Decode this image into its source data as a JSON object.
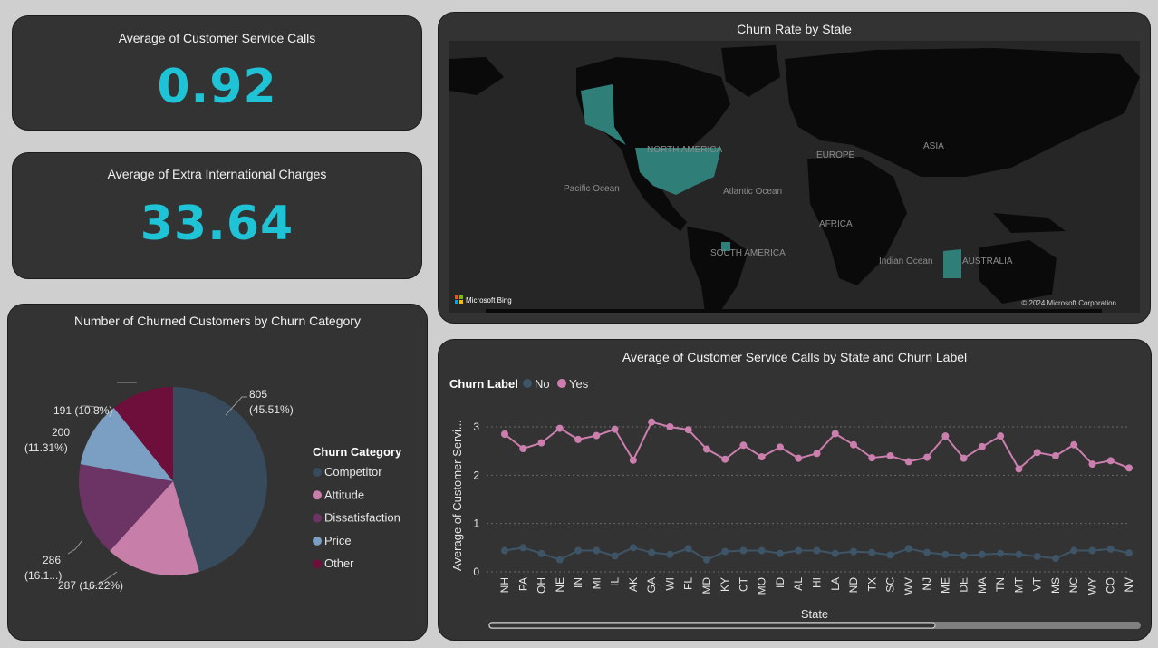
{
  "kpis": [
    {
      "title": "Average of Customer Service Calls",
      "value": "0.92"
    },
    {
      "title": "Average of Extra International Charges",
      "value": "33.64"
    }
  ],
  "map": {
    "title": "Churn Rate by State",
    "labels": {
      "north_america": "NORTH AMERICA",
      "europe": "EUROPE",
      "asia": "ASIA",
      "africa": "AFRICA",
      "south_america": "SOUTH AMERICA",
      "australia": "AUSTRALIA",
      "pacific": "Pacific Ocean",
      "atlantic": "Atlantic Ocean",
      "indian": "Indian Ocean"
    },
    "attribution": "Microsoft Bing",
    "copyright": "© 2024 Microsoft Corporation",
    "highlight_color": "#2f7f78"
  },
  "pie": {
    "title": "Number of Churned Customers by Churn Category",
    "legend_title": "Churn Category",
    "categories": [
      "Competitor",
      "Attitude",
      "Dissatisfaction",
      "Price",
      "Other"
    ],
    "colors": [
      "#374b5c",
      "#c77ea8",
      "#6b3464",
      "#7a9fc3",
      "#6d0f3a"
    ],
    "labels": {
      "competitor_1": "805",
      "competitor_2": "(45.51%)",
      "attitude": "287 (16.22%)",
      "dissatisfaction_1": "286",
      "dissatisfaction_2": "(16.1...)",
      "price_1": "200",
      "price_2": "(11.31%)",
      "other": "191 (10.8%)"
    }
  },
  "chart_data": {
    "type": "line",
    "title": "Average of Customer Service Calls by State and Churn Label",
    "legend_title": "Churn Label",
    "xlabel": "State",
    "ylabel": "Average of Customer Servi...",
    "ylim": [
      0,
      3.3
    ],
    "yticks": [
      0,
      1,
      2,
      3
    ],
    "x": [
      "NH",
      "PA",
      "OH",
      "NE",
      "IN",
      "MI",
      "IL",
      "AK",
      "GA",
      "WI",
      "FL",
      "MD",
      "KY",
      "CT",
      "MO",
      "ID",
      "AL",
      "HI",
      "LA",
      "ND",
      "TX",
      "SC",
      "WV",
      "NJ",
      "ME",
      "DE",
      "MA",
      "TN",
      "MT",
      "VT",
      "MS",
      "NC",
      "WY",
      "CO",
      "NV"
    ],
    "series": [
      {
        "name": "No",
        "color": "#3d5567",
        "values": [
          0.44,
          0.5,
          0.38,
          0.25,
          0.44,
          0.44,
          0.33,
          0.5,
          0.4,
          0.36,
          0.48,
          0.25,
          0.42,
          0.44,
          0.44,
          0.38,
          0.44,
          0.44,
          0.38,
          0.42,
          0.4,
          0.35,
          0.48,
          0.4,
          0.36,
          0.34,
          0.36,
          0.38,
          0.36,
          0.32,
          0.28,
          0.44,
          0.44,
          0.47,
          0.39
        ]
      },
      {
        "name": "Yes",
        "color": "#cc7fae",
        "values": [
          2.85,
          2.55,
          2.67,
          2.97,
          2.74,
          2.82,
          2.95,
          2.31,
          3.1,
          3.0,
          2.94,
          2.54,
          2.33,
          2.62,
          2.38,
          2.58,
          2.35,
          2.45,
          2.86,
          2.63,
          2.36,
          2.4,
          2.28,
          2.37,
          2.81,
          2.35,
          2.59,
          2.81,
          2.13,
          2.47,
          2.4,
          2.63,
          2.23,
          2.3,
          2.15
        ]
      }
    ]
  }
}
